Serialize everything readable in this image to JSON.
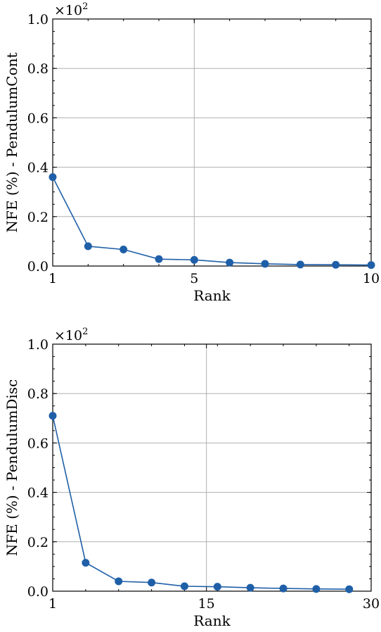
{
  "chart_data": [
    {
      "type": "line",
      "xlabel": "Rank",
      "ylabel": "NFE (%) - PendulumCont",
      "y_multiplier": "×10",
      "y_multiplier_exp": "2",
      "xlim": [
        1,
        10
      ],
      "ylim": [
        0,
        1.0
      ],
      "xticks": [
        1,
        5,
        10
      ],
      "xtick_labels": [
        "1",
        "5",
        "10"
      ],
      "yticks": [
        0,
        0.2,
        0.4,
        0.6,
        0.8,
        1.0
      ],
      "ytick_labels": [
        "0.0",
        "0.2",
        "0.4",
        "0.6",
        "0.8",
        "1.0"
      ],
      "grid": true,
      "color": "#1f5fa8",
      "series": [
        {
          "x": [
            1,
            2,
            3,
            4,
            5,
            6,
            7,
            8,
            9,
            10
          ],
          "y": [
            0.36,
            0.08,
            0.067,
            0.028,
            0.025,
            0.014,
            0.009,
            0.006,
            0.005,
            0.004
          ]
        }
      ]
    },
    {
      "type": "line",
      "xlabel": "Rank",
      "ylabel": "NFE (%) - PendulumDisc",
      "y_multiplier": "×10",
      "y_multiplier_exp": "2",
      "xlim": [
        1,
        30
      ],
      "ylim": [
        0,
        1.0
      ],
      "xticks": [
        1,
        15,
        30
      ],
      "xtick_labels": [
        "1",
        "15",
        "30"
      ],
      "yticks": [
        0,
        0.2,
        0.4,
        0.6,
        0.8,
        1.0
      ],
      "ytick_labels": [
        "0.0",
        "0.2",
        "0.4",
        "0.6",
        "0.8",
        "1.0"
      ],
      "grid": true,
      "color": "#1f5fa8",
      "series": [
        {
          "x": [
            1,
            4,
            7,
            10,
            13,
            16,
            19,
            22,
            25,
            28
          ],
          "y": [
            0.71,
            0.115,
            0.04,
            0.035,
            0.02,
            0.018,
            0.014,
            0.011,
            0.009,
            0.008
          ]
        }
      ]
    }
  ]
}
